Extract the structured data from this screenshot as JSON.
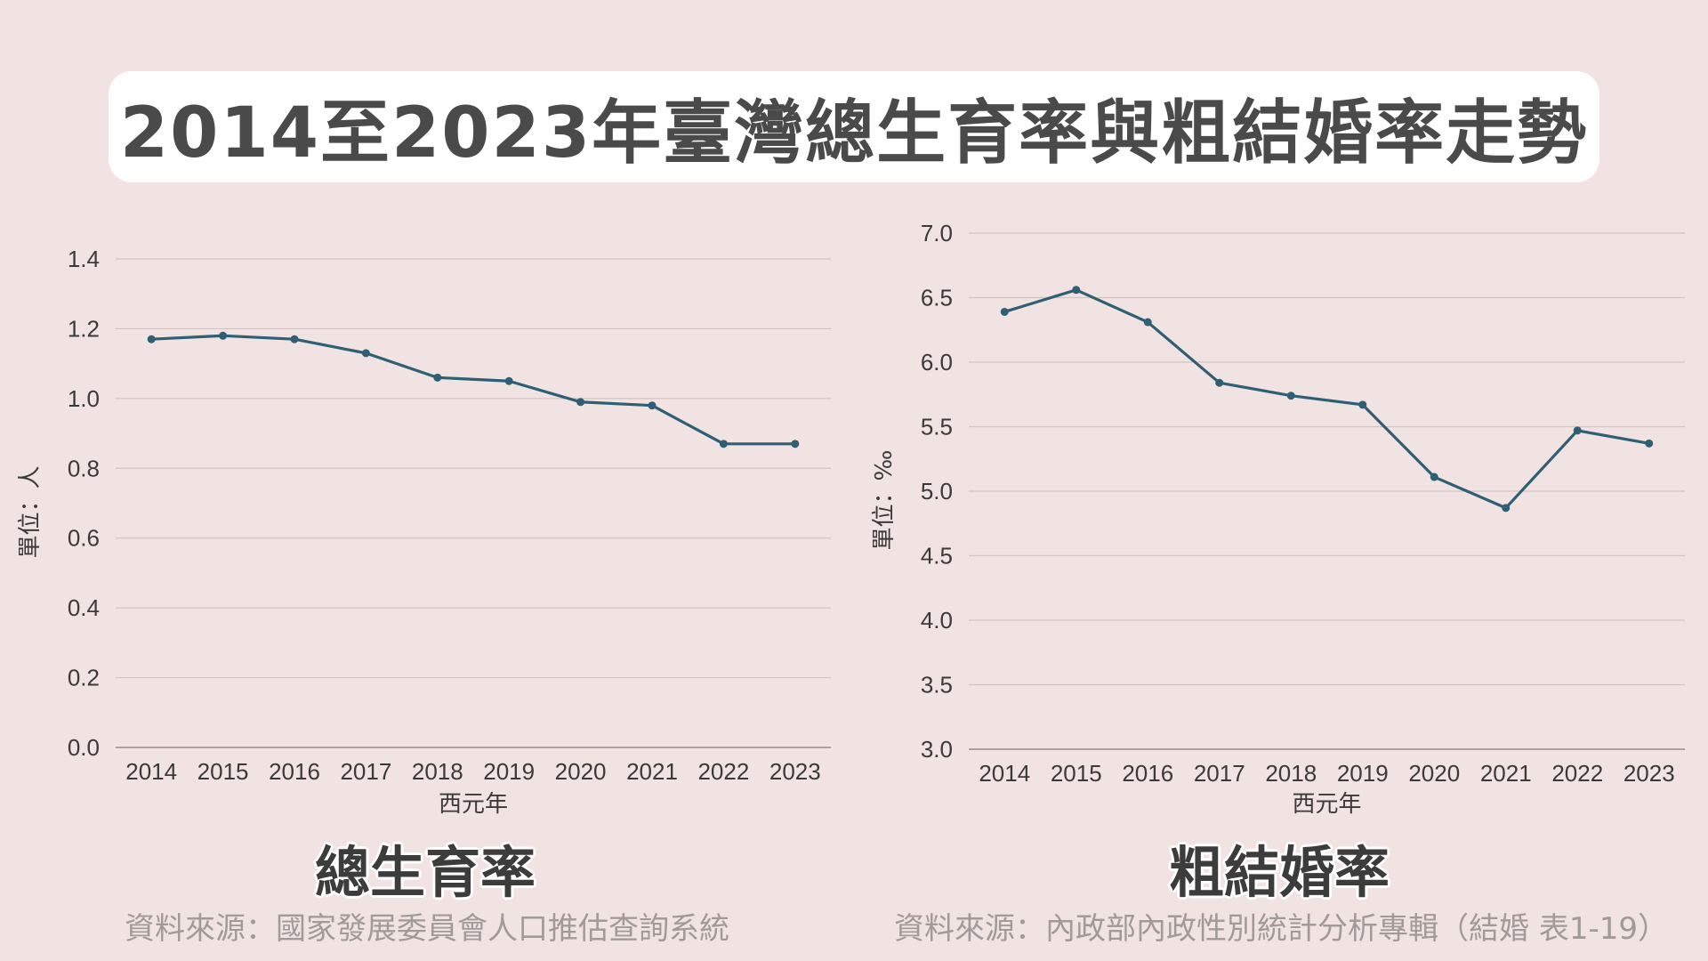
{
  "header": {
    "title": "2014至2023年臺灣總生育率與粗結婚率走勢"
  },
  "colors": {
    "line": "#2f5f74",
    "grid": "#d3c4c2",
    "text": "#3a3a3a",
    "background": "#f1e3e1"
  },
  "chart_data": [
    {
      "type": "line",
      "title": "總生育率",
      "xlabel": "西元年",
      "ylabel": "單位：人",
      "x": [
        "2014",
        "2015",
        "2016",
        "2017",
        "2018",
        "2019",
        "2020",
        "2021",
        "2022",
        "2023"
      ],
      "values": [
        1.17,
        1.18,
        1.17,
        1.13,
        1.06,
        1.05,
        0.99,
        0.98,
        0.87,
        0.87
      ],
      "ylim": [
        0.0,
        1.4
      ],
      "yticks": [
        "0.0",
        "0.2",
        "0.4",
        "0.6",
        "0.8",
        "1.0",
        "1.2",
        "1.4"
      ],
      "source": "資料來源：國家發展委員會人口推估查詢系統"
    },
    {
      "type": "line",
      "title": "粗結婚率",
      "xlabel": "西元年",
      "ylabel": "單位：‰",
      "x": [
        "2014",
        "2015",
        "2016",
        "2017",
        "2018",
        "2019",
        "2020",
        "2021",
        "2022",
        "2023"
      ],
      "values": [
        6.39,
        6.56,
        6.31,
        5.84,
        5.74,
        5.67,
        5.11,
        4.87,
        5.47,
        5.37
      ],
      "ylim": [
        3.0,
        7.0
      ],
      "yticks": [
        "3.0",
        "3.5",
        "4.0",
        "4.5",
        "5.0",
        "5.5",
        "6.0",
        "6.5",
        "7.0"
      ],
      "source": "資料來源：內政部內政性別統計分析專輯（結婚 表1-19）"
    }
  ]
}
